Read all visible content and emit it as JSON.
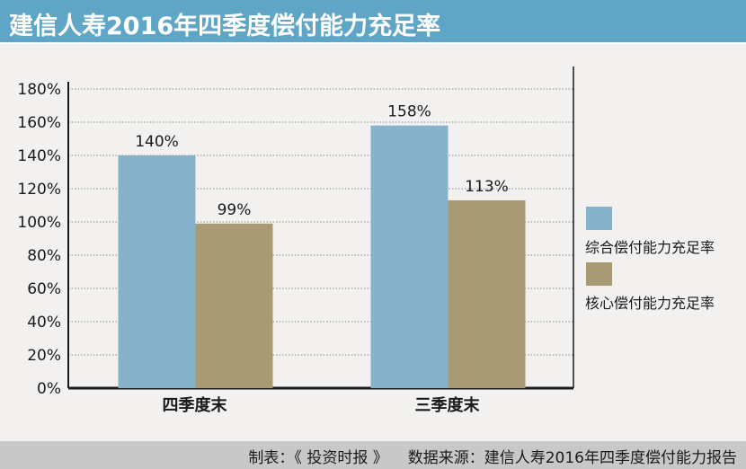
{
  "header": {
    "title": "建信人寿2016年四季度偿付能力充足率"
  },
  "footer": {
    "maker": "制表：《 投资时报 》",
    "source": "数据来源：建信人寿2016年四季度偿付能力报告"
  },
  "colors": {
    "header_bg": "#5fa6c6",
    "series_1": "#86b3cb",
    "series_2": "#a89a72",
    "footer_bg": "#c8c8c8"
  },
  "chart_data": {
    "type": "bar",
    "categories": [
      "四季度末",
      "三季度末"
    ],
    "series": [
      {
        "name": "综合偿付能力充足率",
        "values": [
          140,
          158
        ],
        "labels": [
          "140%",
          "158%"
        ]
      },
      {
        "name": "核心偿付能力充足率",
        "values": [
          99,
          113
        ],
        "labels": [
          "99%",
          "113%"
        ]
      }
    ],
    "ylim": [
      0,
      180
    ],
    "yticks": [
      "0%",
      "20%",
      "40%",
      "60%",
      "80%",
      "100%",
      "120%",
      "140%",
      "160%",
      "180%"
    ],
    "grid": true,
    "legend": "right"
  }
}
